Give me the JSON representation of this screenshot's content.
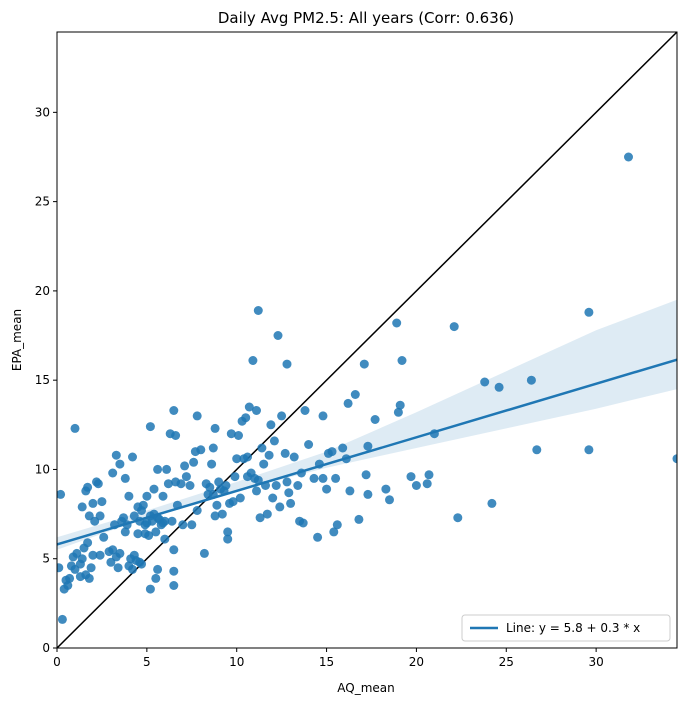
{
  "chart_data": {
    "type": "scatter",
    "title": "Daily Avg PM2.5: All years (Corr: 0.636)",
    "xlabel": "AQ_mean",
    "ylabel": "EPA_mean",
    "xlim": [
      0,
      34.5
    ],
    "ylim": [
      0,
      34.5
    ],
    "xticks": [
      0,
      5,
      10,
      15,
      20,
      25,
      30
    ],
    "yticks": [
      0,
      5,
      10,
      15,
      20,
      25,
      30
    ],
    "grid": false,
    "legend_placement": "bottom-right",
    "colors": {
      "points": "#1f77b4",
      "fit_line": "#1f77b4",
      "band": "#1f77b4",
      "identity_line": "#000000"
    },
    "fit": {
      "label": "Line: y = 5.8 + 0.3 * x",
      "intercept": 5.8,
      "slope": 0.3
    },
    "confidence_band": [
      {
        "x": 0,
        "lo": 5.5,
        "hi": 6.2
      },
      {
        "x": 5,
        "lo": 7.3,
        "hi": 7.7
      },
      {
        "x": 10,
        "lo": 8.8,
        "hi": 9.3
      },
      {
        "x": 15,
        "lo": 10.1,
        "hi": 11.0
      },
      {
        "x": 20,
        "lo": 11.2,
        "hi": 13.2
      },
      {
        "x": 25,
        "lo": 12.3,
        "hi": 15.5
      },
      {
        "x": 30,
        "lo": 13.4,
        "hi": 17.8
      },
      {
        "x": 34.5,
        "lo": 14.5,
        "hi": 19.5
      }
    ],
    "identity_line": [
      [
        0,
        0
      ],
      [
        34.5,
        34.5
      ]
    ],
    "points": [
      [
        0.1,
        4.5
      ],
      [
        0.2,
        8.6
      ],
      [
        0.3,
        1.6
      ],
      [
        0.4,
        3.3
      ],
      [
        0.5,
        3.8
      ],
      [
        0.6,
        3.5
      ],
      [
        0.7,
        3.9
      ],
      [
        0.8,
        4.6
      ],
      [
        0.9,
        5.1
      ],
      [
        1.0,
        4.4
      ],
      [
        1.1,
        5.3
      ],
      [
        1.3,
        4.7
      ],
      [
        1.3,
        4.0
      ],
      [
        1.4,
        5.0
      ],
      [
        1.5,
        5.6
      ],
      [
        1.6,
        4.1
      ],
      [
        1.7,
        5.9
      ],
      [
        1.8,
        3.9
      ],
      [
        1.9,
        4.5
      ],
      [
        2.0,
        5.2
      ],
      [
        1.0,
        12.3
      ],
      [
        1.4,
        7.9
      ],
      [
        1.6,
        8.8
      ],
      [
        1.7,
        9.0
      ],
      [
        1.8,
        7.4
      ],
      [
        2.0,
        8.1
      ],
      [
        2.1,
        7.1
      ],
      [
        2.2,
        9.3
      ],
      [
        2.3,
        9.2
      ],
      [
        2.4,
        7.4
      ],
      [
        2.5,
        8.2
      ],
      [
        2.4,
        5.2
      ],
      [
        2.6,
        6.2
      ],
      [
        2.9,
        5.4
      ],
      [
        3.0,
        4.8
      ],
      [
        3.1,
        5.5
      ],
      [
        3.2,
        6.9
      ],
      [
        3.3,
        5.1
      ],
      [
        3.4,
        4.5
      ],
      [
        3.5,
        5.3
      ],
      [
        3.6,
        7.1
      ],
      [
        3.7,
        7.3
      ],
      [
        3.8,
        6.5
      ],
      [
        3.9,
        6.9
      ],
      [
        4.0,
        4.6
      ],
      [
        4.1,
        5.0
      ],
      [
        4.2,
        4.4
      ],
      [
        4.3,
        5.2
      ],
      [
        4.4,
        4.9
      ],
      [
        4.5,
        6.4
      ],
      [
        4.6,
        7.1
      ],
      [
        4.7,
        7.7
      ],
      [
        4.8,
        8.0
      ],
      [
        4.9,
        6.4
      ],
      [
        3.1,
        9.8
      ],
      [
        3.3,
        10.8
      ],
      [
        3.5,
        10.3
      ],
      [
        3.8,
        9.5
      ],
      [
        4.0,
        8.5
      ],
      [
        4.2,
        10.7
      ],
      [
        4.3,
        7.4
      ],
      [
        4.5,
        7.9
      ],
      [
        4.6,
        4.8
      ],
      [
        4.7,
        4.7
      ],
      [
        4.9,
        6.9
      ],
      [
        5.0,
        7.0
      ],
      [
        5.0,
        8.5
      ],
      [
        5.1,
        6.3
      ],
      [
        5.2,
        7.4
      ],
      [
        5.3,
        7.1
      ],
      [
        5.4,
        7.5
      ],
      [
        5.5,
        6.5
      ],
      [
        5.6,
        7.3
      ],
      [
        5.7,
        7.2
      ],
      [
        5.8,
        6.9
      ],
      [
        5.9,
        7.0
      ],
      [
        6.0,
        7.1
      ],
      [
        5.2,
        12.4
      ],
      [
        5.2,
        3.3
      ],
      [
        5.4,
        8.9
      ],
      [
        5.6,
        10.0
      ],
      [
        5.5,
        3.9
      ],
      [
        5.6,
        4.4
      ],
      [
        5.9,
        8.5
      ],
      [
        6.0,
        6.1
      ],
      [
        6.1,
        10.0
      ],
      [
        6.2,
        9.2
      ],
      [
        6.3,
        12.0
      ],
      [
        6.4,
        7.1
      ],
      [
        6.5,
        5.5
      ],
      [
        6.6,
        9.3
      ],
      [
        6.6,
        11.9
      ],
      [
        6.5,
        13.3
      ],
      [
        6.5,
        4.3
      ],
      [
        6.5,
        3.5
      ],
      [
        6.7,
        8.0
      ],
      [
        6.9,
        9.2
      ],
      [
        7.0,
        6.9
      ],
      [
        7.1,
        10.2
      ],
      [
        7.2,
        9.6
      ],
      [
        7.4,
        9.1
      ],
      [
        7.5,
        6.9
      ],
      [
        7.6,
        10.4
      ],
      [
        7.7,
        11.0
      ],
      [
        7.8,
        7.7
      ],
      [
        7.8,
        13.0
      ],
      [
        8.0,
        11.1
      ],
      [
        8.2,
        5.3
      ],
      [
        8.3,
        9.2
      ],
      [
        8.4,
        8.6
      ],
      [
        8.5,
        9.0
      ],
      [
        8.6,
        10.3
      ],
      [
        8.7,
        11.2
      ],
      [
        8.7,
        8.6
      ],
      [
        8.8,
        12.3
      ],
      [
        8.8,
        7.4
      ],
      [
        8.9,
        8.0
      ],
      [
        9.0,
        9.3
      ],
      [
        9.1,
        8.9
      ],
      [
        9.2,
        7.5
      ],
      [
        9.3,
        8.8
      ],
      [
        9.4,
        9.1
      ],
      [
        9.5,
        6.5
      ],
      [
        9.5,
        6.1
      ],
      [
        9.6,
        8.1
      ],
      [
        9.7,
        12.0
      ],
      [
        9.8,
        8.2
      ],
      [
        9.9,
        9.6
      ],
      [
        10.0,
        10.6
      ],
      [
        10.1,
        11.9
      ],
      [
        10.2,
        8.4
      ],
      [
        10.3,
        12.7
      ],
      [
        10.4,
        10.6
      ],
      [
        10.5,
        12.9
      ],
      [
        10.6,
        10.7
      ],
      [
        10.6,
        9.6
      ],
      [
        10.7,
        13.5
      ],
      [
        10.8,
        9.8
      ],
      [
        10.9,
        16.1
      ],
      [
        11.0,
        9.5
      ],
      [
        11.1,
        8.8
      ],
      [
        11.1,
        13.3
      ],
      [
        11.2,
        18.9
      ],
      [
        11.2,
        9.4
      ],
      [
        11.3,
        7.3
      ],
      [
        11.4,
        11.2
      ],
      [
        11.5,
        10.3
      ],
      [
        11.6,
        9.1
      ],
      [
        11.7,
        7.5
      ],
      [
        11.8,
        10.8
      ],
      [
        11.9,
        12.5
      ],
      [
        12.0,
        8.4
      ],
      [
        12.1,
        11.6
      ],
      [
        12.2,
        9.1
      ],
      [
        12.3,
        17.5
      ],
      [
        12.4,
        7.9
      ],
      [
        12.5,
        13.0
      ],
      [
        12.7,
        10.9
      ],
      [
        12.8,
        15.9
      ],
      [
        12.8,
        9.3
      ],
      [
        12.9,
        8.7
      ],
      [
        13.0,
        8.1
      ],
      [
        13.2,
        10.7
      ],
      [
        13.4,
        9.1
      ],
      [
        13.5,
        7.1
      ],
      [
        13.6,
        9.8
      ],
      [
        13.7,
        7.0
      ],
      [
        13.8,
        13.3
      ],
      [
        14.0,
        11.4
      ],
      [
        14.3,
        9.5
      ],
      [
        14.5,
        6.2
      ],
      [
        14.6,
        10.3
      ],
      [
        14.8,
        9.5
      ],
      [
        14.8,
        13.0
      ],
      [
        15.0,
        8.9
      ],
      [
        15.1,
        10.9
      ],
      [
        15.3,
        11.0
      ],
      [
        15.4,
        6.5
      ],
      [
        15.5,
        9.5
      ],
      [
        15.6,
        6.9
      ],
      [
        15.9,
        11.2
      ],
      [
        16.1,
        10.6
      ],
      [
        16.2,
        13.7
      ],
      [
        16.3,
        8.8
      ],
      [
        16.6,
        14.2
      ],
      [
        16.8,
        7.2
      ],
      [
        17.1,
        15.9
      ],
      [
        17.2,
        9.7
      ],
      [
        17.3,
        11.3
      ],
      [
        17.3,
        8.6
      ],
      [
        17.7,
        12.8
      ],
      [
        18.3,
        8.9
      ],
      [
        18.5,
        8.3
      ],
      [
        18.9,
        18.2
      ],
      [
        19.0,
        13.2
      ],
      [
        19.2,
        16.1
      ],
      [
        19.1,
        13.6
      ],
      [
        19.7,
        9.6
      ],
      [
        20.0,
        9.1
      ],
      [
        20.6,
        9.2
      ],
      [
        20.7,
        9.7
      ],
      [
        21.0,
        12.0
      ],
      [
        22.1,
        18.0
      ],
      [
        22.3,
        7.3
      ],
      [
        23.8,
        14.9
      ],
      [
        24.2,
        8.1
      ],
      [
        24.6,
        14.6
      ],
      [
        26.4,
        15.0
      ],
      [
        26.7,
        11.1
      ],
      [
        29.6,
        11.1
      ],
      [
        29.6,
        18.8
      ],
      [
        31.8,
        27.5
      ],
      [
        34.5,
        10.6
      ]
    ]
  }
}
